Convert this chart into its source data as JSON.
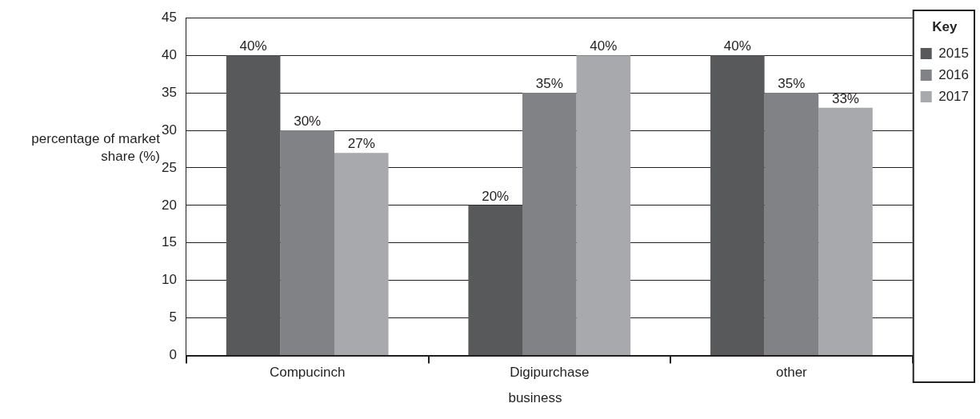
{
  "chart_data": {
    "type": "bar",
    "xlabel": "business",
    "ylabel": "percentage of market share (%)",
    "legend_title": "Key",
    "categories": [
      "Compucinch",
      "Digipurchase",
      "other"
    ],
    "series": [
      {
        "name": "2015",
        "color": "#58595b",
        "values": [
          40,
          20,
          40
        ],
        "value_labels": [
          "40%",
          "20%",
          "40%"
        ]
      },
      {
        "name": "2016",
        "color": "#808285",
        "values": [
          30,
          35,
          35
        ],
        "value_labels": [
          "30%",
          "35%",
          "35%"
        ]
      },
      {
        "name": "2017",
        "color": "#a7a9ac",
        "values": [
          27,
          40,
          33
        ],
        "value_labels": [
          "27%",
          "40%",
          "33%"
        ]
      }
    ],
    "ylim": [
      0,
      45
    ],
    "yticks": [
      0,
      5,
      10,
      15,
      20,
      25,
      30,
      35,
      40,
      45
    ],
    "grid": "y",
    "legend": "top right"
  }
}
